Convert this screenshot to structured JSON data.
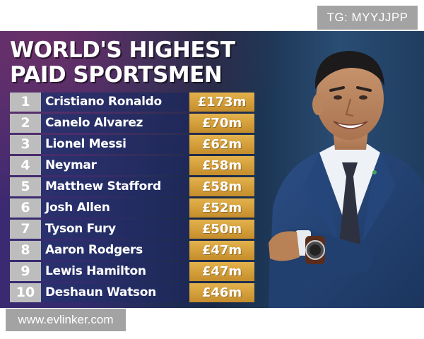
{
  "watermark_top": "TG: MYYJJPP",
  "headline": {
    "line1": "WORLD'S HIGHEST",
    "line2": "PAID SPORTSMEN"
  },
  "rankings": [
    {
      "rank": "1",
      "name": "Cristiano Ronaldo",
      "amount": "£173m"
    },
    {
      "rank": "2",
      "name": "Canelo Alvarez",
      "amount": "£70m"
    },
    {
      "rank": "3",
      "name": "Lionel Messi",
      "amount": "£62m"
    },
    {
      "rank": "4",
      "name": "Neymar",
      "amount": "£58m"
    },
    {
      "rank": "5",
      "name": "Matthew Stafford",
      "amount": "£58m"
    },
    {
      "rank": "6",
      "name": "Josh Allen",
      "amount": "£52m"
    },
    {
      "rank": "7",
      "name": "Tyson Fury",
      "amount": "£50m"
    },
    {
      "rank": "8",
      "name": "Aaron Rodgers",
      "amount": "£47m"
    },
    {
      "rank": "9",
      "name": "Lewis Hamilton",
      "amount": "£47m"
    },
    {
      "rank": "10",
      "name": "Deshaun Watson",
      "amount": "£46m"
    }
  ],
  "watermark_bottom": "www.evlinker.com",
  "colors": {
    "amount_gold": "#d9a23f",
    "rank_gray": "#bdbdbd",
    "headline_white": "#ffffff"
  }
}
